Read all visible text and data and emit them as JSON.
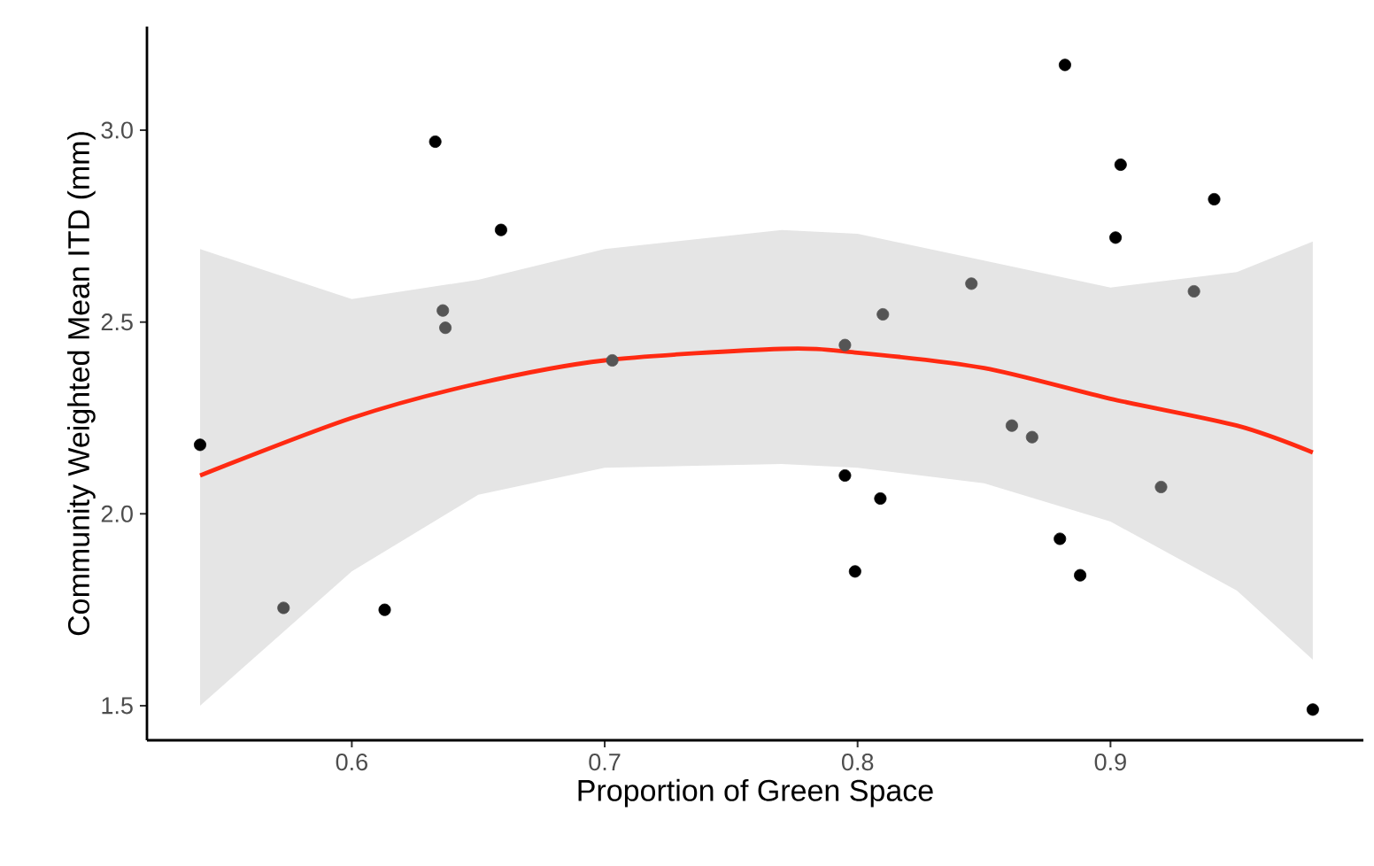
{
  "chart_data": {
    "type": "scatter",
    "xlabel": "Proportion of Green Space",
    "ylabel": "Community Weighted Mean ITD (mm)",
    "xlim": [
      0.519,
      1.0
    ],
    "ylim": [
      1.41,
      3.27
    ],
    "xticks": [
      0.6,
      0.7,
      0.8,
      0.9
    ],
    "yticks": [
      1.5,
      {
        "value": 2.0,
        "label": "2.0"
      },
      2.5,
      {
        "value": 3.0,
        "label": "3.0"
      }
    ],
    "grid": false,
    "series": [
      {
        "type": "line",
        "color": "#ff2a12",
        "marker": "none",
        "x": [
          0.54,
          0.6,
          0.65,
          0.7,
          0.77,
          0.8,
          0.85,
          0.9,
          0.95,
          0.98
        ],
        "values": [
          2.1,
          2.25,
          2.34,
          2.4,
          2.43,
          2.42,
          2.38,
          2.3,
          2.23,
          2.16
        ],
        "lower": [
          1.5,
          1.85,
          2.05,
          2.12,
          2.13,
          2.12,
          2.08,
          1.98,
          1.8,
          1.62
        ],
        "upper": [
          2.69,
          2.56,
          2.61,
          2.69,
          2.74,
          2.73,
          2.66,
          2.59,
          2.63,
          2.71
        ]
      },
      {
        "marker": "circle",
        "x": [
          0.54,
          0.573,
          0.613,
          0.633,
          0.636,
          0.637,
          0.659,
          0.703,
          0.795,
          0.795,
          0.799,
          0.809,
          0.81,
          0.845,
          0.861,
          0.869,
          0.88,
          0.882,
          0.888,
          0.902,
          0.904,
          0.92,
          0.933,
          0.941,
          0.98
        ],
        "values": [
          2.18,
          1.755,
          1.75,
          2.97,
          2.53,
          2.485,
          2.74,
          2.4,
          2.1,
          2.44,
          1.85,
          2.04,
          2.52,
          2.6,
          2.23,
          2.2,
          1.935,
          3.17,
          1.84,
          2.72,
          2.91,
          2.07,
          2.58,
          2.82,
          1.49
        ],
        "colors": [
          "#000000",
          "#4d4d4d",
          "#000000",
          "#000000",
          "#555555",
          "#555555",
          "#000000",
          "#555555",
          "#000000",
          "#555555",
          "#000000",
          "#000000",
          "#555555",
          "#555555",
          "#555555",
          "#555555",
          "#000000",
          "#000000",
          "#000000",
          "#000000",
          "#000000",
          "#555555",
          "#555555",
          "#000000",
          "#000000"
        ]
      }
    ]
  }
}
